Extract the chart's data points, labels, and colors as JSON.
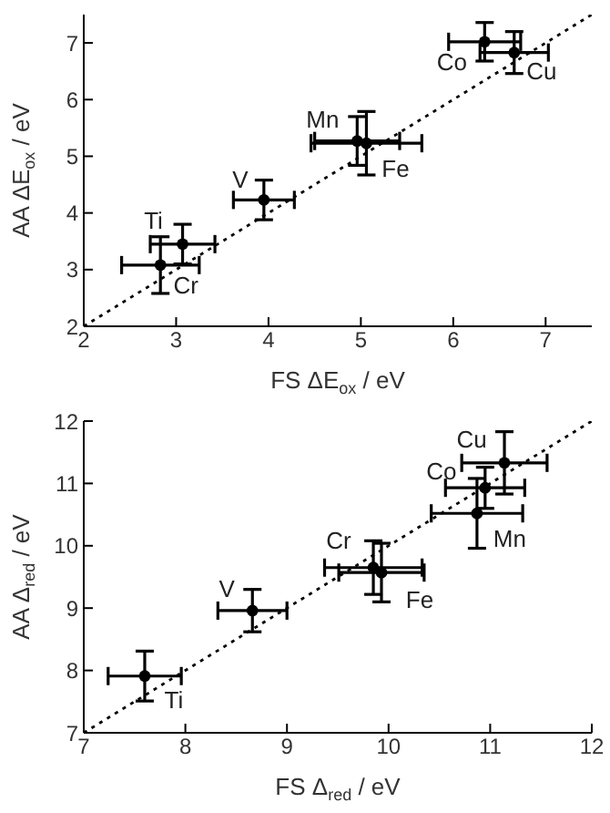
{
  "chart_data": [
    {
      "type": "scatter",
      "xlabel": "FS ΔE$_{ox}$ / eV",
      "ylabel": "AA ΔE$_{ox}$ / eV",
      "xlim": [
        2,
        7.5
      ],
      "ylim": [
        2,
        7.5
      ],
      "xticks": [
        2,
        3,
        4,
        5,
        6,
        7
      ],
      "yticks": [
        2,
        3,
        4,
        5,
        6,
        7
      ],
      "series": [
        {
          "marker": "circle",
          "color": "#000000",
          "x": [
            3.07,
            2.83,
            3.95,
            4.96,
            5.06,
            6.34,
            6.66
          ],
          "values": [
            3.45,
            3.08,
            4.23,
            5.27,
            5.23,
            7.02,
            6.83
          ],
          "xerrors": [
            0.35,
            0.42,
            0.33,
            0.46,
            0.6,
            0.39,
            0.37
          ],
          "errors": [
            0.35,
            0.5,
            0.35,
            0.43,
            0.56,
            0.34,
            0.37
          ]
        },
        {
          "type": "line",
          "color": "#000000",
          "line_style": "dotted",
          "x": [
            2,
            7.5
          ],
          "values": [
            2,
            7.5
          ]
        }
      ],
      "annotations": [
        {
          "text": "Ti",
          "x": 3.07,
          "y": 3.45
        },
        {
          "text": "Cr",
          "x": 2.83,
          "y": 3.08
        },
        {
          "text": "V",
          "x": 3.95,
          "y": 4.23
        },
        {
          "text": "Mn",
          "x": 4.96,
          "y": 5.27
        },
        {
          "text": "Fe",
          "x": 5.06,
          "y": 5.23
        },
        {
          "text": "Co",
          "x": 6.34,
          "y": 7.02
        },
        {
          "text": "Cu",
          "x": 6.66,
          "y": 6.83
        }
      ]
    },
    {
      "type": "scatter",
      "xlabel": "FS Δ$_{red}$ / eV",
      "ylabel": "AA Δ$_{red}$ / eV",
      "xlim": [
        7,
        12
      ],
      "ylim": [
        7,
        12
      ],
      "xticks": [
        7,
        8,
        9,
        10,
        11,
        12
      ],
      "yticks": [
        7,
        8,
        9,
        10,
        11,
        12
      ],
      "series": [
        {
          "marker": "circle",
          "color": "#000000",
          "x": [
            7.6,
            8.66,
            9.85,
            9.93,
            10.87,
            10.95,
            11.14
          ],
          "values": [
            7.91,
            8.96,
            9.65,
            9.57,
            10.52,
            10.93,
            11.33
          ],
          "xerrors": [
            0.36,
            0.34,
            0.48,
            0.42,
            0.45,
            0.39,
            0.42
          ],
          "errors": [
            0.4,
            0.34,
            0.43,
            0.47,
            0.56,
            0.33,
            0.5
          ]
        },
        {
          "type": "line",
          "color": "#000000",
          "line_style": "dotted",
          "x": [
            7,
            12
          ],
          "values": [
            7,
            12
          ]
        }
      ],
      "annotations": [
        {
          "text": "Ti",
          "x": 7.6,
          "y": 7.91
        },
        {
          "text": "V",
          "x": 8.66,
          "y": 8.96
        },
        {
          "text": "Cr",
          "x": 9.85,
          "y": 9.65
        },
        {
          "text": "Fe",
          "x": 9.93,
          "y": 9.57
        },
        {
          "text": "Mn",
          "x": 10.87,
          "y": 10.52
        },
        {
          "text": "Co",
          "x": 10.95,
          "y": 10.93
        },
        {
          "text": "Cu",
          "x": 11.14,
          "y": 11.33
        }
      ]
    }
  ]
}
